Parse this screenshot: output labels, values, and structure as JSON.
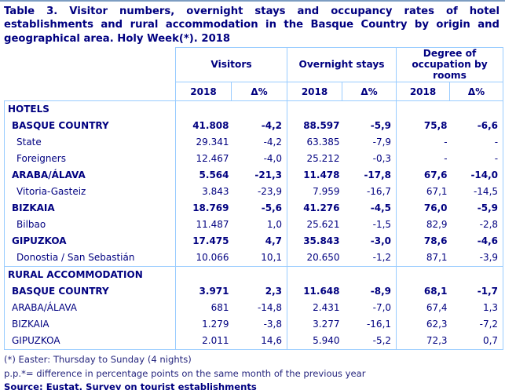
{
  "title": "Table 3. Visitor numbers, overnight stays and occupancy rates of hotel establishments and rural accommodation in the Basque Country by origin and geographical area. Holy Week(*). 2018",
  "colors": {
    "text_navy": "#000080",
    "table_border": "#99ccff",
    "top_rule": "#7d9dc2",
    "background": "#ffffff"
  },
  "table": {
    "column_groups": [
      {
        "label": "Visitors"
      },
      {
        "label": "Overnight stays"
      },
      {
        "label": "Degree of occupation by rooms"
      }
    ],
    "sub_headers": [
      "2018",
      "Δ%",
      "2018",
      "Δ%",
      "2018",
      "Δ%"
    ],
    "rows": [
      {
        "label": "HOTELS",
        "type": "section",
        "indent": 0,
        "values": [
          "",
          "",
          "",
          "",
          "",
          ""
        ]
      },
      {
        "label": "BASQUE COUNTRY",
        "type": "bold",
        "indent": 1,
        "values": [
          "41.808",
          "-4,2",
          "88.597",
          "-5,9",
          "75,8",
          "-6,6"
        ]
      },
      {
        "label": "State",
        "type": "normal",
        "indent": 2,
        "values": [
          "29.341",
          "-4,2",
          "63.385",
          "-7,9",
          "-",
          "-"
        ]
      },
      {
        "label": "Foreigners",
        "type": "normal",
        "indent": 2,
        "values": [
          "12.467",
          "-4,0",
          "25.212",
          "-0,3",
          "-",
          "-"
        ]
      },
      {
        "label": "ARABA/ÁLAVA",
        "type": "bold",
        "indent": 1,
        "values": [
          "5.564",
          "-21,3",
          "11.478",
          "-17,8",
          "67,6",
          "-14,0"
        ]
      },
      {
        "label": "Vitoria-Gasteiz",
        "type": "normal",
        "indent": 2,
        "values": [
          "3.843",
          "-23,9",
          "7.959",
          "-16,7",
          "67,1",
          "-14,5"
        ]
      },
      {
        "label": "BIZKAIA",
        "type": "bold",
        "indent": 1,
        "values": [
          "18.769",
          "-5,6",
          "41.276",
          "-4,5",
          "76,0",
          "-5,9"
        ]
      },
      {
        "label": "Bilbao",
        "type": "normal",
        "indent": 2,
        "values": [
          "11.487",
          "1,0",
          "25.621",
          "-1,5",
          "82,9",
          "-2,8"
        ]
      },
      {
        "label": "GIPUZKOA",
        "type": "bold",
        "indent": 1,
        "values": [
          "17.475",
          "4,7",
          "35.843",
          "-3,0",
          "78,6",
          "-4,6"
        ]
      },
      {
        "label": "Donostia / San Sebastián",
        "type": "normal",
        "indent": 2,
        "values": [
          "10.066",
          "10,1",
          "20.650",
          "-1,2",
          "87,1",
          "-3,9"
        ]
      },
      {
        "label": "RURAL ACCOMMODATION",
        "type": "section",
        "indent": 0,
        "section_start": true,
        "values": [
          "",
          "",
          "",
          "",
          "",
          ""
        ]
      },
      {
        "label": "BASQUE COUNTRY",
        "type": "bold",
        "indent": 1,
        "values": [
          "3.971",
          "2,3",
          "11.648",
          "-8,9",
          "68,1",
          "-1,7"
        ]
      },
      {
        "label": "ARABA/ÁLAVA",
        "type": "normal",
        "indent": 1,
        "values": [
          "681",
          "-14,8",
          "2.431",
          "-7,0",
          "67,4",
          "1,3"
        ]
      },
      {
        "label": "BIZKAIA",
        "type": "normal",
        "indent": 1,
        "values": [
          "1.279",
          "-3,8",
          "3.277",
          "-16,1",
          "62,3",
          "-7,2"
        ]
      },
      {
        "label": "GIPUZKOA",
        "type": "normal",
        "indent": 1,
        "values": [
          "2.011",
          "14,6",
          "5.940",
          "-5,2",
          "72,3",
          "0,7"
        ]
      }
    ]
  },
  "footnotes": {
    "easter": "(*) Easter: Thursday to Sunday (4 nights)",
    "pp": "p.p.*= difference in percentage points on the same month of the previous year",
    "source": "Source: Eustat. Survey on tourist establishments"
  }
}
